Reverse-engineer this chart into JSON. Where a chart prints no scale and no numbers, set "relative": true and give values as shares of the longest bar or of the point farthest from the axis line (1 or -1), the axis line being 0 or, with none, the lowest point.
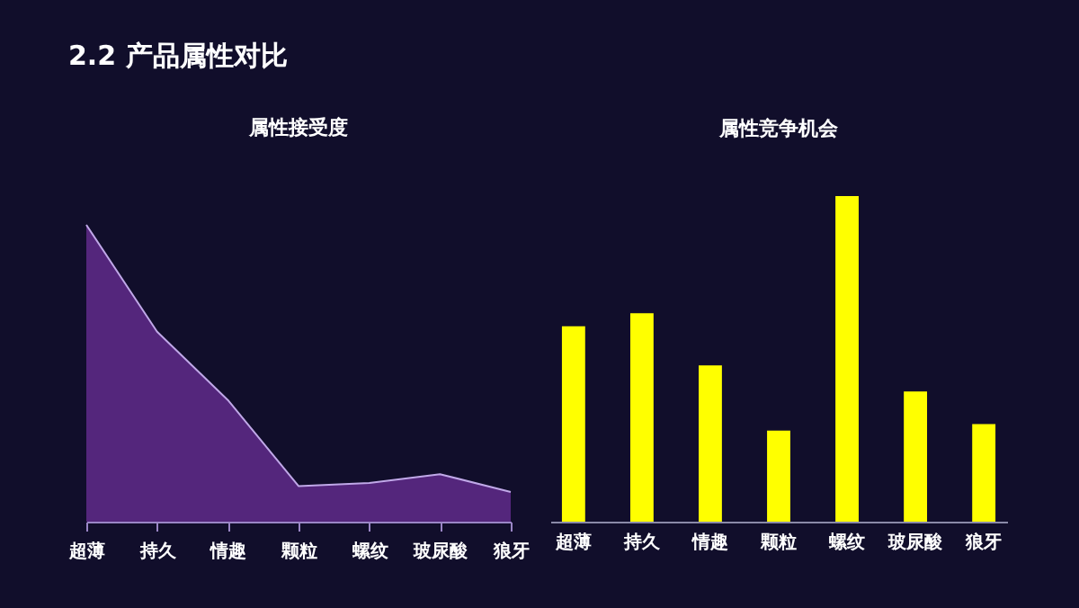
{
  "chart_data": [
    {
      "type": "area",
      "title": "属性接受度",
      "annotations": [
        "2.2 产品属性对比"
      ],
      "relative": true,
      "categories": [
        "超薄",
        "持久",
        "情趣",
        "颗粒",
        "螺纹",
        "玻尿酸",
        "狼牙"
      ],
      "series": [
        {
          "color": "#7030a0",
          "values": [
            1,
            0.64,
            0.41,
            0.12,
            0.13,
            0.16,
            0.1
          ]
        }
      ]
    },
    {
      "type": "bar",
      "title": "属性竞争机会",
      "relative": true,
      "categories": [
        "超薄",
        "持久",
        "情趣",
        "颗粒",
        "螺纹",
        "玻尿酸",
        "狼牙"
      ],
      "series": [
        {
          "color": "#ffff00",
          "values": [
            0.6,
            0.64,
            0.48,
            0.28,
            1,
            0.4,
            0.3
          ]
        }
      ]
    }
  ]
}
